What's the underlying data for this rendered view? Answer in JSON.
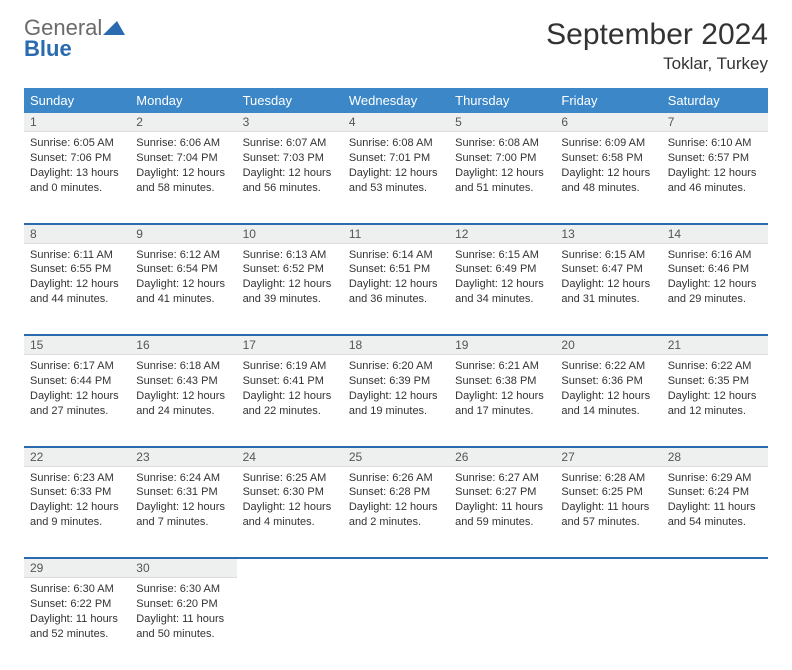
{
  "logo": {
    "top": "General",
    "bottom": "Blue"
  },
  "title": "September 2024",
  "location": "Toklar, Turkey",
  "columns": [
    "Sunday",
    "Monday",
    "Tuesday",
    "Wednesday",
    "Thursday",
    "Friday",
    "Saturday"
  ],
  "colors": {
    "header_bg": "#3b87c8",
    "header_text": "#ffffff",
    "daynum_bg": "#eef0f0",
    "separator": "#2a6bb0",
    "logo_gray": "#6b6b6b",
    "logo_blue": "#2a6bb0"
  },
  "typography": {
    "title_fontsize": 30,
    "location_fontsize": 17,
    "header_fontsize": 13,
    "cell_fontsize": 11
  },
  "weeks": [
    [
      {
        "day": "1",
        "sunrise": "Sunrise: 6:05 AM",
        "sunset": "Sunset: 7:06 PM",
        "daylight": "Daylight: 13 hours and 0 minutes."
      },
      {
        "day": "2",
        "sunrise": "Sunrise: 6:06 AM",
        "sunset": "Sunset: 7:04 PM",
        "daylight": "Daylight: 12 hours and 58 minutes."
      },
      {
        "day": "3",
        "sunrise": "Sunrise: 6:07 AM",
        "sunset": "Sunset: 7:03 PM",
        "daylight": "Daylight: 12 hours and 56 minutes."
      },
      {
        "day": "4",
        "sunrise": "Sunrise: 6:08 AM",
        "sunset": "Sunset: 7:01 PM",
        "daylight": "Daylight: 12 hours and 53 minutes."
      },
      {
        "day": "5",
        "sunrise": "Sunrise: 6:08 AM",
        "sunset": "Sunset: 7:00 PM",
        "daylight": "Daylight: 12 hours and 51 minutes."
      },
      {
        "day": "6",
        "sunrise": "Sunrise: 6:09 AM",
        "sunset": "Sunset: 6:58 PM",
        "daylight": "Daylight: 12 hours and 48 minutes."
      },
      {
        "day": "7",
        "sunrise": "Sunrise: 6:10 AM",
        "sunset": "Sunset: 6:57 PM",
        "daylight": "Daylight: 12 hours and 46 minutes."
      }
    ],
    [
      {
        "day": "8",
        "sunrise": "Sunrise: 6:11 AM",
        "sunset": "Sunset: 6:55 PM",
        "daylight": "Daylight: 12 hours and 44 minutes."
      },
      {
        "day": "9",
        "sunrise": "Sunrise: 6:12 AM",
        "sunset": "Sunset: 6:54 PM",
        "daylight": "Daylight: 12 hours and 41 minutes."
      },
      {
        "day": "10",
        "sunrise": "Sunrise: 6:13 AM",
        "sunset": "Sunset: 6:52 PM",
        "daylight": "Daylight: 12 hours and 39 minutes."
      },
      {
        "day": "11",
        "sunrise": "Sunrise: 6:14 AM",
        "sunset": "Sunset: 6:51 PM",
        "daylight": "Daylight: 12 hours and 36 minutes."
      },
      {
        "day": "12",
        "sunrise": "Sunrise: 6:15 AM",
        "sunset": "Sunset: 6:49 PM",
        "daylight": "Daylight: 12 hours and 34 minutes."
      },
      {
        "day": "13",
        "sunrise": "Sunrise: 6:15 AM",
        "sunset": "Sunset: 6:47 PM",
        "daylight": "Daylight: 12 hours and 31 minutes."
      },
      {
        "day": "14",
        "sunrise": "Sunrise: 6:16 AM",
        "sunset": "Sunset: 6:46 PM",
        "daylight": "Daylight: 12 hours and 29 minutes."
      }
    ],
    [
      {
        "day": "15",
        "sunrise": "Sunrise: 6:17 AM",
        "sunset": "Sunset: 6:44 PM",
        "daylight": "Daylight: 12 hours and 27 minutes."
      },
      {
        "day": "16",
        "sunrise": "Sunrise: 6:18 AM",
        "sunset": "Sunset: 6:43 PM",
        "daylight": "Daylight: 12 hours and 24 minutes."
      },
      {
        "day": "17",
        "sunrise": "Sunrise: 6:19 AM",
        "sunset": "Sunset: 6:41 PM",
        "daylight": "Daylight: 12 hours and 22 minutes."
      },
      {
        "day": "18",
        "sunrise": "Sunrise: 6:20 AM",
        "sunset": "Sunset: 6:39 PM",
        "daylight": "Daylight: 12 hours and 19 minutes."
      },
      {
        "day": "19",
        "sunrise": "Sunrise: 6:21 AM",
        "sunset": "Sunset: 6:38 PM",
        "daylight": "Daylight: 12 hours and 17 minutes."
      },
      {
        "day": "20",
        "sunrise": "Sunrise: 6:22 AM",
        "sunset": "Sunset: 6:36 PM",
        "daylight": "Daylight: 12 hours and 14 minutes."
      },
      {
        "day": "21",
        "sunrise": "Sunrise: 6:22 AM",
        "sunset": "Sunset: 6:35 PM",
        "daylight": "Daylight: 12 hours and 12 minutes."
      }
    ],
    [
      {
        "day": "22",
        "sunrise": "Sunrise: 6:23 AM",
        "sunset": "Sunset: 6:33 PM",
        "daylight": "Daylight: 12 hours and 9 minutes."
      },
      {
        "day": "23",
        "sunrise": "Sunrise: 6:24 AM",
        "sunset": "Sunset: 6:31 PM",
        "daylight": "Daylight: 12 hours and 7 minutes."
      },
      {
        "day": "24",
        "sunrise": "Sunrise: 6:25 AM",
        "sunset": "Sunset: 6:30 PM",
        "daylight": "Daylight: 12 hours and 4 minutes."
      },
      {
        "day": "25",
        "sunrise": "Sunrise: 6:26 AM",
        "sunset": "Sunset: 6:28 PM",
        "daylight": "Daylight: 12 hours and 2 minutes."
      },
      {
        "day": "26",
        "sunrise": "Sunrise: 6:27 AM",
        "sunset": "Sunset: 6:27 PM",
        "daylight": "Daylight: 11 hours and 59 minutes."
      },
      {
        "day": "27",
        "sunrise": "Sunrise: 6:28 AM",
        "sunset": "Sunset: 6:25 PM",
        "daylight": "Daylight: 11 hours and 57 minutes."
      },
      {
        "day": "28",
        "sunrise": "Sunrise: 6:29 AM",
        "sunset": "Sunset: 6:24 PM",
        "daylight": "Daylight: 11 hours and 54 minutes."
      }
    ],
    [
      {
        "day": "29",
        "sunrise": "Sunrise: 6:30 AM",
        "sunset": "Sunset: 6:22 PM",
        "daylight": "Daylight: 11 hours and 52 minutes."
      },
      {
        "day": "30",
        "sunrise": "Sunrise: 6:30 AM",
        "sunset": "Sunset: 6:20 PM",
        "daylight": "Daylight: 11 hours and 50 minutes."
      },
      null,
      null,
      null,
      null,
      null
    ]
  ]
}
